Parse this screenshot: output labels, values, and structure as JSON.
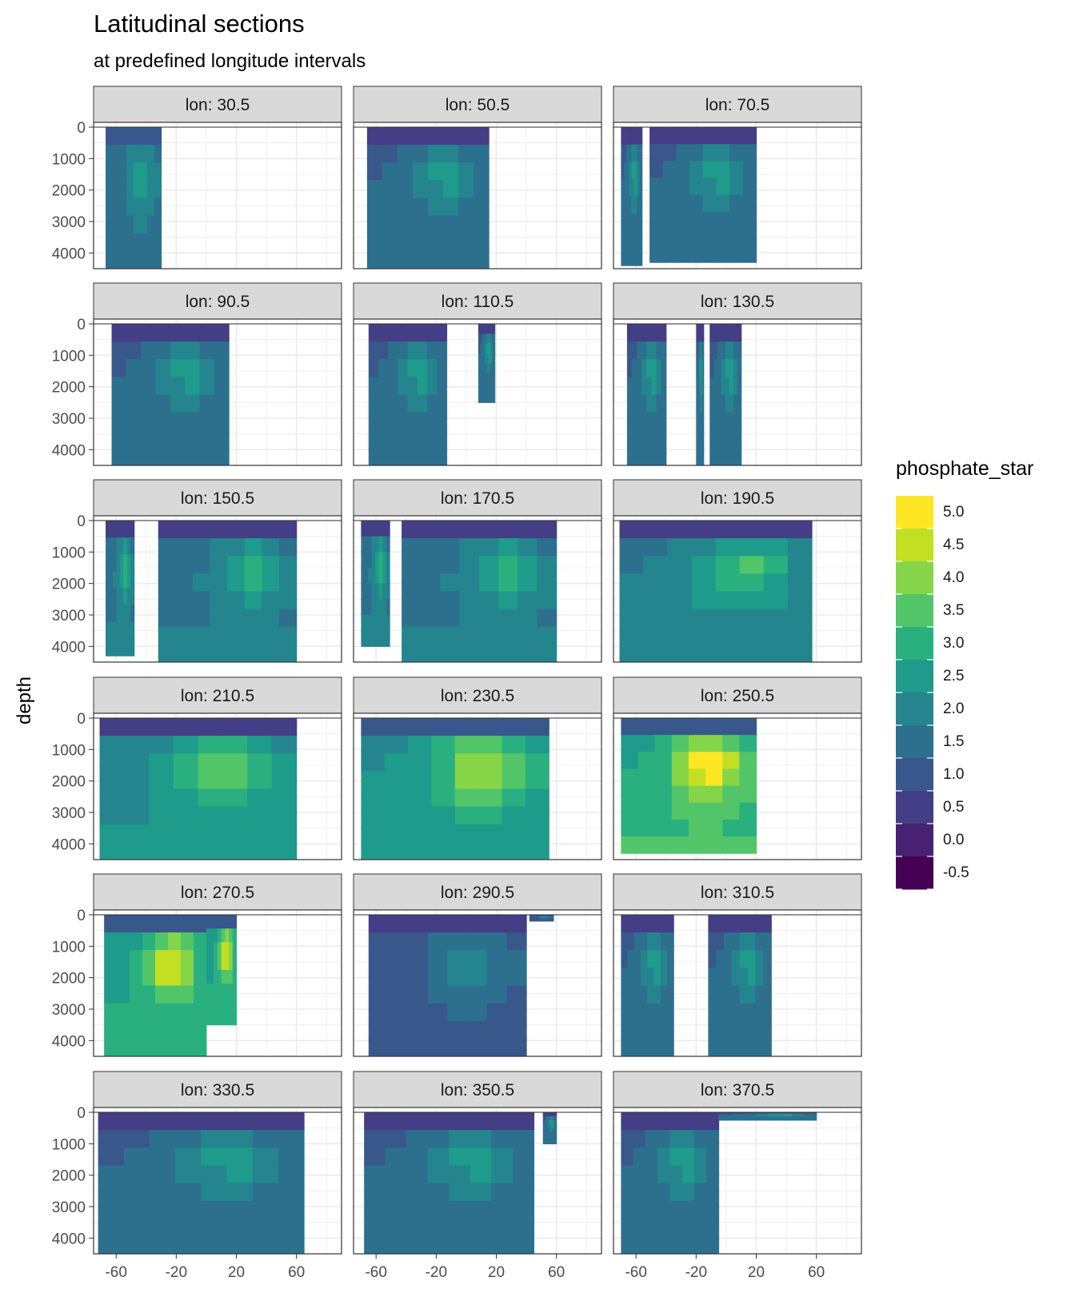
{
  "chart_data": {
    "type": "heatmap",
    "title": "Latitudinal sections",
    "subtitle": "at predefined longitude intervals",
    "xlabel": "",
    "ylabel": "depth",
    "xlim": [
      -75,
      90
    ],
    "ylim": [
      0,
      4500
    ],
    "y_reversed": true,
    "x_ticks": [
      -60,
      -20,
      20,
      60
    ],
    "y_ticks": [
      0,
      1000,
      2000,
      3000,
      4000
    ],
    "grid": true,
    "legend": {
      "title": "phosphate_star",
      "position": "right",
      "labels": [
        "5.0",
        "4.5",
        "4.0",
        "3.5",
        "3.0",
        "2.5",
        "2.0",
        "1.5",
        "1.0",
        "0.5",
        "0.0",
        "-0.5"
      ],
      "colors": [
        "#fde725",
        "#c2df23",
        "#86d549",
        "#52c569",
        "#2ab07f",
        "#1e9b8a",
        "#25858e",
        "#2d708e",
        "#38588c",
        "#433e85",
        "#482173",
        "#440154"
      ]
    },
    "panels": [
      {
        "label": "lon: 30.5",
        "value_range": [
          0.0,
          2.5
        ],
        "coverage": [
          [
            -67,
            -30,
            4500
          ]
        ]
      },
      {
        "label": "lon: 50.5",
        "value_range": [
          -0.5,
          2.5
        ],
        "coverage": [
          [
            -66,
            15,
            4500
          ]
        ]
      },
      {
        "label": "lon: 70.5",
        "value_range": [
          -0.5,
          2.5
        ],
        "coverage": [
          [
            -70,
            -56,
            4400
          ],
          [
            -51,
            20,
            4300
          ]
        ]
      },
      {
        "label": "lon: 90.5",
        "value_range": [
          -0.5,
          2.5
        ],
        "coverage": [
          [
            -63,
            15,
            4500
          ]
        ]
      },
      {
        "label": "lon: 110.5",
        "value_range": [
          -0.5,
          2.5
        ],
        "coverage": [
          [
            -65,
            -13,
            4500
          ],
          [
            8,
            19,
            2500
          ]
        ]
      },
      {
        "label": "lon: 130.5",
        "value_range": [
          -0.5,
          2.5
        ],
        "coverage": [
          [
            -66,
            -40,
            4500
          ],
          [
            -20,
            -15,
            4500
          ],
          [
            -11,
            10,
            4500
          ]
        ]
      },
      {
        "label": "lon: 150.5",
        "value_range": [
          -0.5,
          3.0
        ],
        "coverage": [
          [
            -67,
            -48,
            4300
          ],
          [
            -32,
            60,
            4500
          ]
        ]
      },
      {
        "label": "lon: 170.5",
        "value_range": [
          -0.5,
          3.0
        ],
        "coverage": [
          [
            -70,
            -51,
            4000
          ],
          [
            -43,
            60,
            4500
          ]
        ]
      },
      {
        "label": "lon: 190.5",
        "value_range": [
          -0.5,
          3.5
        ],
        "coverage": [
          [
            -71,
            57,
            4500
          ]
        ]
      },
      {
        "label": "lon: 210.5",
        "value_range": [
          -0.5,
          4.0
        ],
        "coverage": [
          [
            -71,
            60,
            4500
          ]
        ]
      },
      {
        "label": "lon: 230.5",
        "value_range": [
          -0.5,
          4.5
        ],
        "coverage": [
          [
            -70,
            55,
            4500
          ]
        ]
      },
      {
        "label": "lon: 250.5",
        "value_range": [
          -0.5,
          5.5
        ],
        "coverage": [
          [
            -70,
            20,
            4300
          ]
        ]
      },
      {
        "label": "lon: 270.5",
        "value_range": [
          -0.5,
          5.0
        ],
        "coverage": [
          [
            -68,
            0,
            4500
          ],
          [
            0,
            20,
            3500
          ]
        ]
      },
      {
        "label": "lon: 290.5",
        "value_range": [
          -0.5,
          2.0
        ],
        "coverage": [
          [
            -65,
            40,
            4500
          ],
          [
            42,
            58,
            200
          ]
        ]
      },
      {
        "label": "lon: 310.5",
        "value_range": [
          -0.5,
          2.5
        ],
        "coverage": [
          [
            -70,
            -35,
            4500
          ],
          [
            -12,
            30,
            4500
          ]
        ]
      },
      {
        "label": "lon: 330.5",
        "value_range": [
          -0.5,
          2.5
        ],
        "coverage": [
          [
            -72,
            65,
            4500
          ]
        ]
      },
      {
        "label": "lon: 350.5",
        "value_range": [
          -0.5,
          2.5
        ],
        "coverage": [
          [
            -68,
            45,
            4500
          ],
          [
            51,
            60,
            1000
          ]
        ]
      },
      {
        "label": "lon: 370.5",
        "value_range": [
          -0.5,
          2.5
        ],
        "coverage": [
          [
            -70,
            -5,
            4500
          ],
          [
            -5,
            60,
            250
          ]
        ]
      }
    ]
  }
}
